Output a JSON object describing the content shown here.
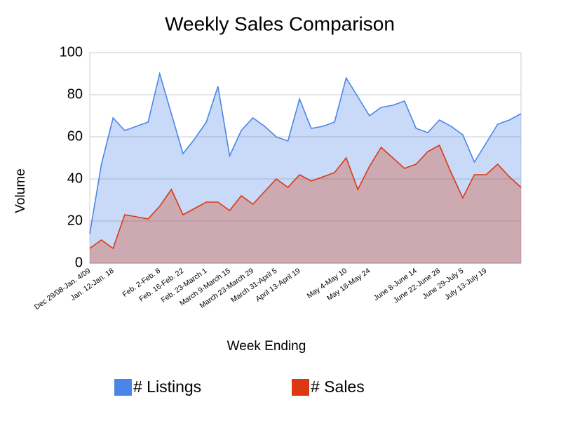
{
  "chart_data": {
    "type": "area",
    "title": "Weekly Sales Comparison",
    "x_label": "Week Ending",
    "y_label": "Volume",
    "categories": [
      "Dec 29/08-Jan. 4/09",
      null,
      "Jan. 12-Jan. 18",
      null,
      null,
      null,
      "Feb. 2-Feb. 8",
      null,
      "Feb. 16-Feb. 22",
      null,
      "Feb. 23-March 1",
      null,
      "March 9-March 15",
      null,
      "March 23-March 29",
      null,
      "March 31-April 5",
      null,
      "April 13-April 19",
      null,
      null,
      null,
      "May 4-May 10",
      null,
      "May 18-May 24",
      null,
      null,
      null,
      "June 8-June 14",
      null,
      "June 22-June 28",
      null,
      "June 29-July 5",
      null,
      "July 13-July 19",
      null,
      null,
      null
    ],
    "series": [
      {
        "name": "# Listings",
        "color": "#4a86e8",
        "values": [
          14,
          47,
          69,
          63,
          65,
          67,
          90,
          71,
          52,
          59,
          67,
          84,
          51,
          63,
          69,
          65,
          60,
          58,
          78,
          64,
          65,
          67,
          88,
          79,
          70,
          74,
          75,
          77,
          64,
          62,
          68,
          65,
          61,
          48,
          57,
          66,
          68,
          71
        ]
      },
      {
        "name": "# Sales",
        "color": "#dc3912",
        "values": [
          7,
          11,
          7,
          23,
          22,
          21,
          27,
          35,
          23,
          26,
          29,
          29,
          25,
          32,
          28,
          34,
          40,
          36,
          42,
          39,
          41,
          43,
          50,
          35,
          46,
          55,
          50,
          45,
          47,
          53,
          56,
          43,
          31,
          42,
          42,
          47,
          41,
          36
        ]
      }
    ],
    "ylim": [
      0,
      100
    ],
    "yticks": [
      0,
      20,
      40,
      60,
      80,
      100
    ],
    "grid": true
  }
}
